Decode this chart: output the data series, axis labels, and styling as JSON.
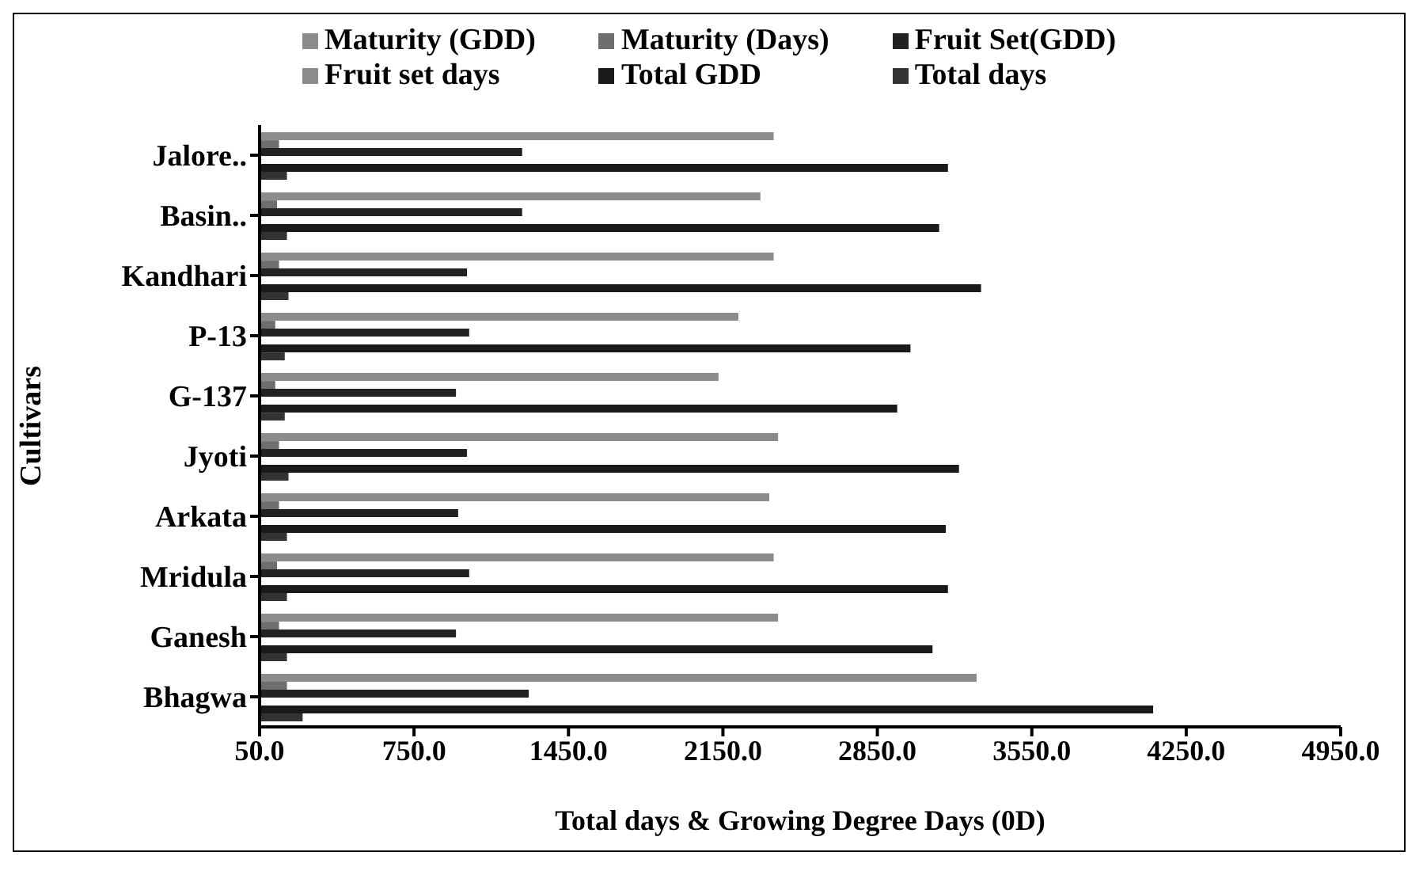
{
  "chart_data": {
    "type": "bar",
    "orientation": "horizontal",
    "xlabel": "Total days & Growing Degree Days (0D)",
    "ylabel": "Cultivars",
    "categories": [
      "Jalore..",
      "Basin..",
      "Kandhari",
      "P-13",
      "G-137",
      "Jyoti",
      "Arkata",
      "Mridula",
      "Ganesh",
      "Bhagwa"
    ],
    "series": [
      {
        "name": "Maturity (GDD)",
        "color": "#8c8c8c",
        "values": [
          2380,
          2320,
          2380,
          2220,
          2130,
          2400,
          2360,
          2380,
          2400,
          3300
        ]
      },
      {
        "name": "Maturity (Days)",
        "color": "#6e6e6e",
        "values": [
          138,
          129,
          138,
          121,
          121,
          138,
          138,
          129,
          138,
          174
        ]
      },
      {
        "name": "Fruit Set(GDD)",
        "color": "#222222",
        "values": [
          1240,
          1240,
          990,
          1000,
          940,
          990,
          950,
          1000,
          940,
          1270
        ]
      },
      {
        "name": "Fruit set days",
        "color": "#8c8c8c",
        "values": [
          null,
          null,
          null,
          null,
          null,
          null,
          null,
          null,
          null,
          null
        ]
      },
      {
        "name": "Total GDD",
        "color": "#1a1a1a",
        "values": [
          3170,
          3130,
          3320,
          3000,
          2940,
          3220,
          3160,
          3170,
          3100,
          4100
        ]
      },
      {
        "name": "Total days",
        "color": "#333333",
        "values": [
          174,
          174,
          181,
          164,
          164,
          181,
          174,
          174,
          174,
          245
        ]
      }
    ],
    "xlim": [
      50,
      4950
    ],
    "xticks": [
      {
        "value": 50,
        "label": "50.0"
      },
      {
        "value": 750,
        "label": "750.0"
      },
      {
        "value": 1450,
        "label": "1450.0"
      },
      {
        "value": 2150,
        "label": "2150.0"
      },
      {
        "value": 2850,
        "label": "2850.0"
      },
      {
        "value": 3550,
        "label": "3550.0"
      },
      {
        "value": 4250,
        "label": "4250.0"
      },
      {
        "value": 4950,
        "label": "4950.0"
      }
    ],
    "legend": "top",
    "grid": false
  }
}
